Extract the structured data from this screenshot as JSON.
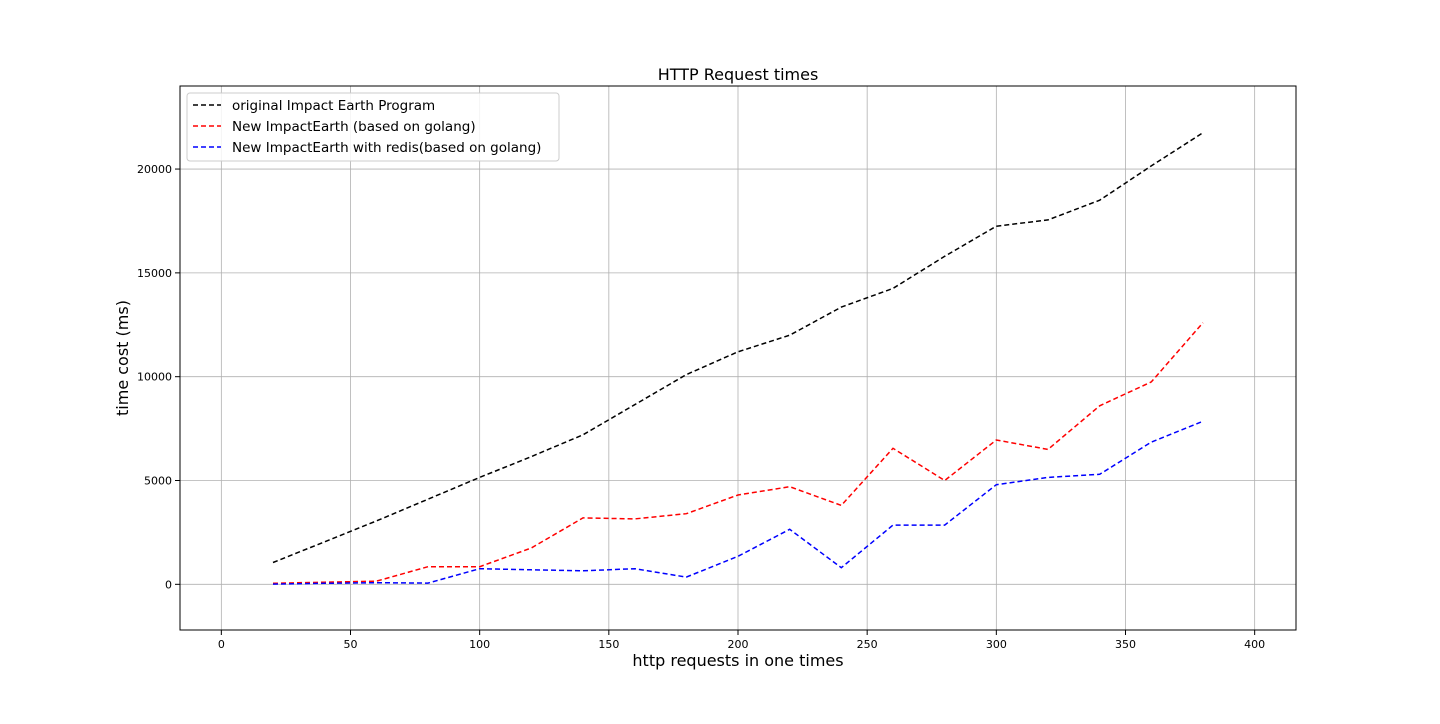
{
  "chart_data": {
    "type": "line",
    "title": "HTTP Request times",
    "xlabel": "http requests in one times",
    "ylabel": "time cost (ms)",
    "xlim": [
      -16,
      416
    ],
    "ylim": [
      -2200,
      24000
    ],
    "xticks": [
      0,
      50,
      100,
      150,
      200,
      250,
      300,
      350,
      400
    ],
    "yticks": [
      0,
      5000,
      10000,
      15000,
      20000
    ],
    "grid": true,
    "legend_position": "top-left",
    "line_style": "dashed",
    "x": [
      20,
      40,
      60,
      80,
      100,
      120,
      140,
      160,
      180,
      200,
      220,
      240,
      260,
      280,
      300,
      320,
      340,
      360,
      380
    ],
    "series": [
      {
        "name": "original Impact Earth Program",
        "color": "#000000",
        "values": [
          1050,
          2050,
          3050,
          4100,
          5150,
          6150,
          7200,
          8650,
          10100,
          11200,
          12000,
          13350,
          14250,
          15800,
          17250,
          17550,
          18500,
          20150,
          21750
        ]
      },
      {
        "name": "New ImpactEarth (based on golang)",
        "color": "#ff0000",
        "values": [
          50,
          100,
          150,
          850,
          850,
          1750,
          3200,
          3150,
          3400,
          4300,
          4700,
          3800,
          6550,
          5000,
          6950,
          6500,
          8600,
          9750,
          12600
        ]
      },
      {
        "name": "New ImpactEarth with redis(based on golang)",
        "color": "#0000ff",
        "values": [
          10,
          50,
          80,
          60,
          750,
          700,
          650,
          750,
          350,
          1350,
          2650,
          800,
          2850,
          2850,
          4800,
          5150,
          5300,
          6850,
          7850
        ]
      }
    ]
  }
}
